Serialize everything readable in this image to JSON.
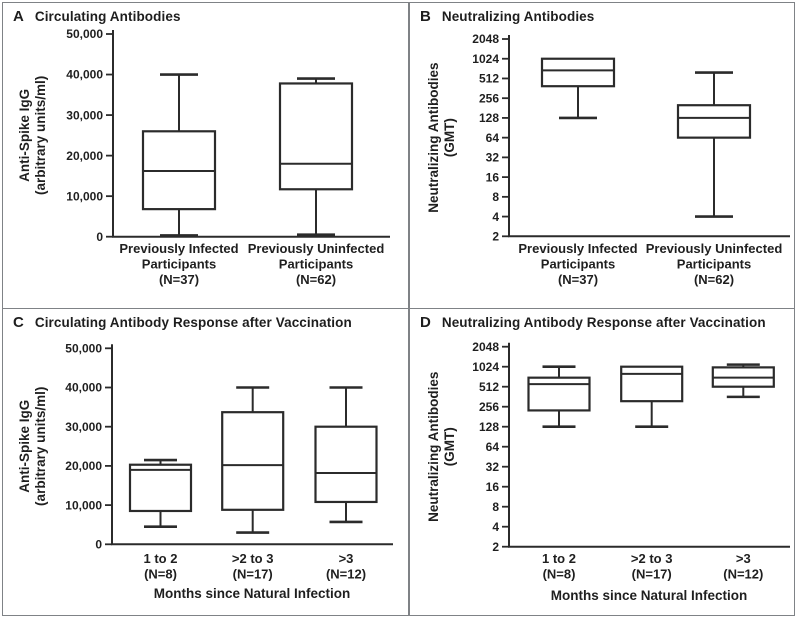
{
  "figure": {
    "panels": [
      {
        "letter": "A",
        "title": "Circulating Antibodies"
      },
      {
        "letter": "B",
        "title": "Neutralizing Antibodies"
      },
      {
        "letter": "C",
        "title": "Circulating Antibody Response after Vaccination"
      },
      {
        "letter": "D",
        "title": "Neutralizing Antibody Response after Vaccination"
      }
    ]
  },
  "colors": {
    "box_stroke": "#2b2b2b",
    "axis": "#2b2b2b",
    "text": "#1e1e1e",
    "panel_border": "#7f8286",
    "background": "#ffffff"
  },
  "chart_data": [
    {
      "type": "box",
      "panel": "A",
      "title": "Circulating Antibodies",
      "ylabel": "Anti-Spike IgG\n(arbitrary units/ml)",
      "yscale": "linear",
      "ylim": [
        0,
        50000
      ],
      "yticks": [
        0,
        10000,
        20000,
        30000,
        40000,
        50000
      ],
      "ytick_labels": [
        "0",
        "10,000",
        "20,000",
        "30,000",
        "40,000",
        "50,000"
      ],
      "categories": [
        "Previously Infected\nParticipants\n(N=37)",
        "Previously Uninfected\nParticipants\n(N=62)"
      ],
      "xlabel": "",
      "boxes": [
        {
          "min": 300,
          "q1": 6800,
          "median": 16200,
          "q3": 26000,
          "max": 40000
        },
        {
          "min": 500,
          "q1": 11700,
          "median": 18000,
          "q3": 37800,
          "max": 39000
        }
      ]
    },
    {
      "type": "box",
      "panel": "B",
      "title": "Neutralizing Antibodies",
      "ylabel": "Neutralizing Antibodies\n(GMT)",
      "yscale": "log2",
      "ylim": [
        2,
        2048
      ],
      "yticks": [
        2,
        4,
        8,
        16,
        32,
        64,
        128,
        256,
        512,
        1024,
        2048
      ],
      "ytick_labels": [
        "2",
        "4",
        "8",
        "16",
        "32",
        "64",
        "128",
        "256",
        "512",
        "1024",
        "2048"
      ],
      "categories": [
        "Previously Infected\nParticipants\n(N=37)",
        "Previously Uninfected\nParticipants\n(N=62)"
      ],
      "xlabel": "",
      "boxes": [
        {
          "min": 128,
          "q1": 390,
          "median": 680,
          "q3": 1024,
          "max": 1024
        },
        {
          "min": 4,
          "q1": 64,
          "median": 128,
          "q3": 200,
          "max": 630
        }
      ]
    },
    {
      "type": "box",
      "panel": "C",
      "title": "Circulating Antibody Response after Vaccination",
      "ylabel": "Anti-Spike IgG\n(arbitrary units/ml)",
      "yscale": "linear",
      "ylim": [
        0,
        50000
      ],
      "yticks": [
        0,
        10000,
        20000,
        30000,
        40000,
        50000
      ],
      "ytick_labels": [
        "0",
        "10,000",
        "20,000",
        "30,000",
        "40,000",
        "50,000"
      ],
      "categories": [
        "1 to 2\n(N=8)",
        ">2 to 3\n(N=17)",
        ">3\n(N=12)"
      ],
      "xlabel": "Months since Natural Infection",
      "boxes": [
        {
          "min": 4500,
          "q1": 8500,
          "median": 19000,
          "q3": 20300,
          "max": 21500
        },
        {
          "min": 3000,
          "q1": 8800,
          "median": 20200,
          "q3": 33700,
          "max": 40000
        },
        {
          "min": 5700,
          "q1": 10800,
          "median": 18200,
          "q3": 30000,
          "max": 40000
        }
      ]
    },
    {
      "type": "box",
      "panel": "D",
      "title": "Neutralizing Antibody Response after Vaccination",
      "ylabel": "Neutralizing Antibodies\n(GMT)",
      "yscale": "log2",
      "ylim": [
        2,
        2048
      ],
      "yticks": [
        2,
        4,
        8,
        16,
        32,
        64,
        128,
        256,
        512,
        1024,
        2048
      ],
      "ytick_labels": [
        "2",
        "4",
        "8",
        "16",
        "32",
        "64",
        "128",
        "256",
        "512",
        "1024",
        "2048"
      ],
      "categories": [
        "1 to 2\n(N=8)",
        ">2 to 3\n(N=17)",
        ">3\n(N=12)"
      ],
      "xlabel": "Months since Natural Infection",
      "boxes": [
        {
          "min": 128,
          "q1": 225,
          "median": 560,
          "q3": 700,
          "max": 1024
        },
        {
          "min": 128,
          "q1": 310,
          "median": 800,
          "q3": 1024,
          "max": 1024
        },
        {
          "min": 360,
          "q1": 512,
          "median": 700,
          "q3": 1000,
          "max": 1100
        }
      ]
    }
  ]
}
